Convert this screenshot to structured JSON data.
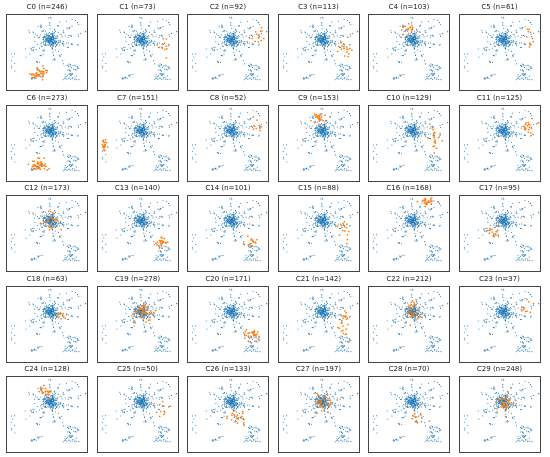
{
  "chart_data": {
    "type": "scatter",
    "layout": {
      "rows": 5,
      "cols": 6
    },
    "colors": {
      "base": "#1f77b4",
      "highlight": "#ff7f0e"
    },
    "panels": [
      {
        "title": "C0 (n=246)",
        "highlight_region": "lower-left"
      },
      {
        "title": "C1 (n=73)",
        "highlight_region": "right"
      },
      {
        "title": "C2 (n=92)",
        "highlight_region": "upper-right"
      },
      {
        "title": "C3 (n=113)",
        "highlight_region": "right"
      },
      {
        "title": "C4 (n=103)",
        "highlight_region": "upper-center"
      },
      {
        "title": "C5 (n=61)",
        "highlight_region": "upper-right"
      },
      {
        "title": "C6 (n=273)",
        "highlight_region": "lower-left"
      },
      {
        "title": "C7 (n=151)",
        "highlight_region": "left"
      },
      {
        "title": "C8 (n=52)",
        "highlight_region": "upper-right"
      },
      {
        "title": "C9 (n=153)",
        "highlight_region": "upper-center"
      },
      {
        "title": "C10 (n=129)",
        "highlight_region": "right"
      },
      {
        "title": "C11 (n=125)",
        "highlight_region": "upper-right"
      },
      {
        "title": "C12 (n=173)",
        "highlight_region": "center"
      },
      {
        "title": "C13 (n=140)",
        "highlight_region": "lower-right"
      },
      {
        "title": "C14 (n=101)",
        "highlight_region": "lower-right"
      },
      {
        "title": "C15 (n=88)",
        "highlight_region": "right"
      },
      {
        "title": "C16 (n=168)",
        "highlight_region": "top"
      },
      {
        "title": "C17 (n=95)",
        "highlight_region": "left-center"
      },
      {
        "title": "C18 (n=63)",
        "highlight_region": "center-right"
      },
      {
        "title": "C19 (n=278)",
        "highlight_region": "center"
      },
      {
        "title": "C20 (n=171)",
        "highlight_region": "lower-right"
      },
      {
        "title": "C21 (n=142)",
        "highlight_region": "right"
      },
      {
        "title": "C22 (n=212)",
        "highlight_region": "center"
      },
      {
        "title": "C23 (n=37)",
        "highlight_region": "upper-right"
      },
      {
        "title": "C24 (n=128)",
        "highlight_region": "upper-center"
      },
      {
        "title": "C25 (n=50)",
        "highlight_region": "right"
      },
      {
        "title": "C26 (n=133)",
        "highlight_region": "lower-center"
      },
      {
        "title": "C27 (n=197)",
        "highlight_region": "center"
      },
      {
        "title": "C28 (n=70)",
        "highlight_region": "lower-center"
      },
      {
        "title": "C29 (n=248)",
        "highlight_region": "center"
      }
    ]
  }
}
